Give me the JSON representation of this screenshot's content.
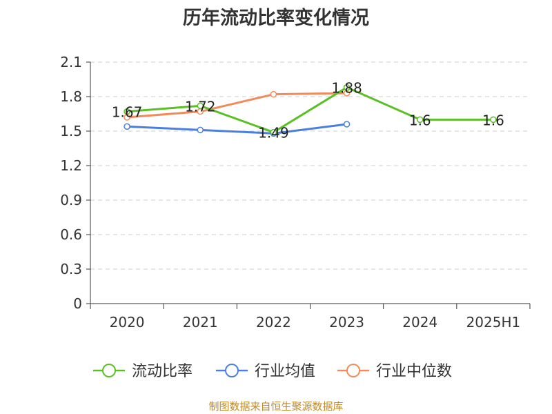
{
  "chart_data": {
    "type": "line",
    "title": "历年流动比率变化情况",
    "categories": [
      "2020",
      "2021",
      "2022",
      "2023",
      "2024",
      "2025H1"
    ],
    "ylim": [
      0,
      2.1
    ],
    "yticks": [
      "0",
      "0.3",
      "0.6",
      "0.9",
      "1.2",
      "1.5",
      "1.8",
      "2.1"
    ],
    "grid": true,
    "legend_position": "bottom",
    "series": [
      {
        "name": "流动比率",
        "color": "#5bbf26",
        "values": [
          1.67,
          1.72,
          1.49,
          1.88,
          1.6,
          1.6
        ],
        "labels": [
          "1.67",
          "1.72",
          "1.49",
          "1.88",
          "1.6",
          "1.6"
        ]
      },
      {
        "name": "行业均值",
        "color": "#4a7fe0",
        "values": [
          1.54,
          1.51,
          1.48,
          1.56,
          null,
          null
        ]
      },
      {
        "name": "行业中位数",
        "color": "#f28b5b",
        "values": [
          1.62,
          1.67,
          1.82,
          1.83,
          null,
          null
        ]
      }
    ]
  },
  "source_note": "制图数据来自恒生聚源数据库"
}
